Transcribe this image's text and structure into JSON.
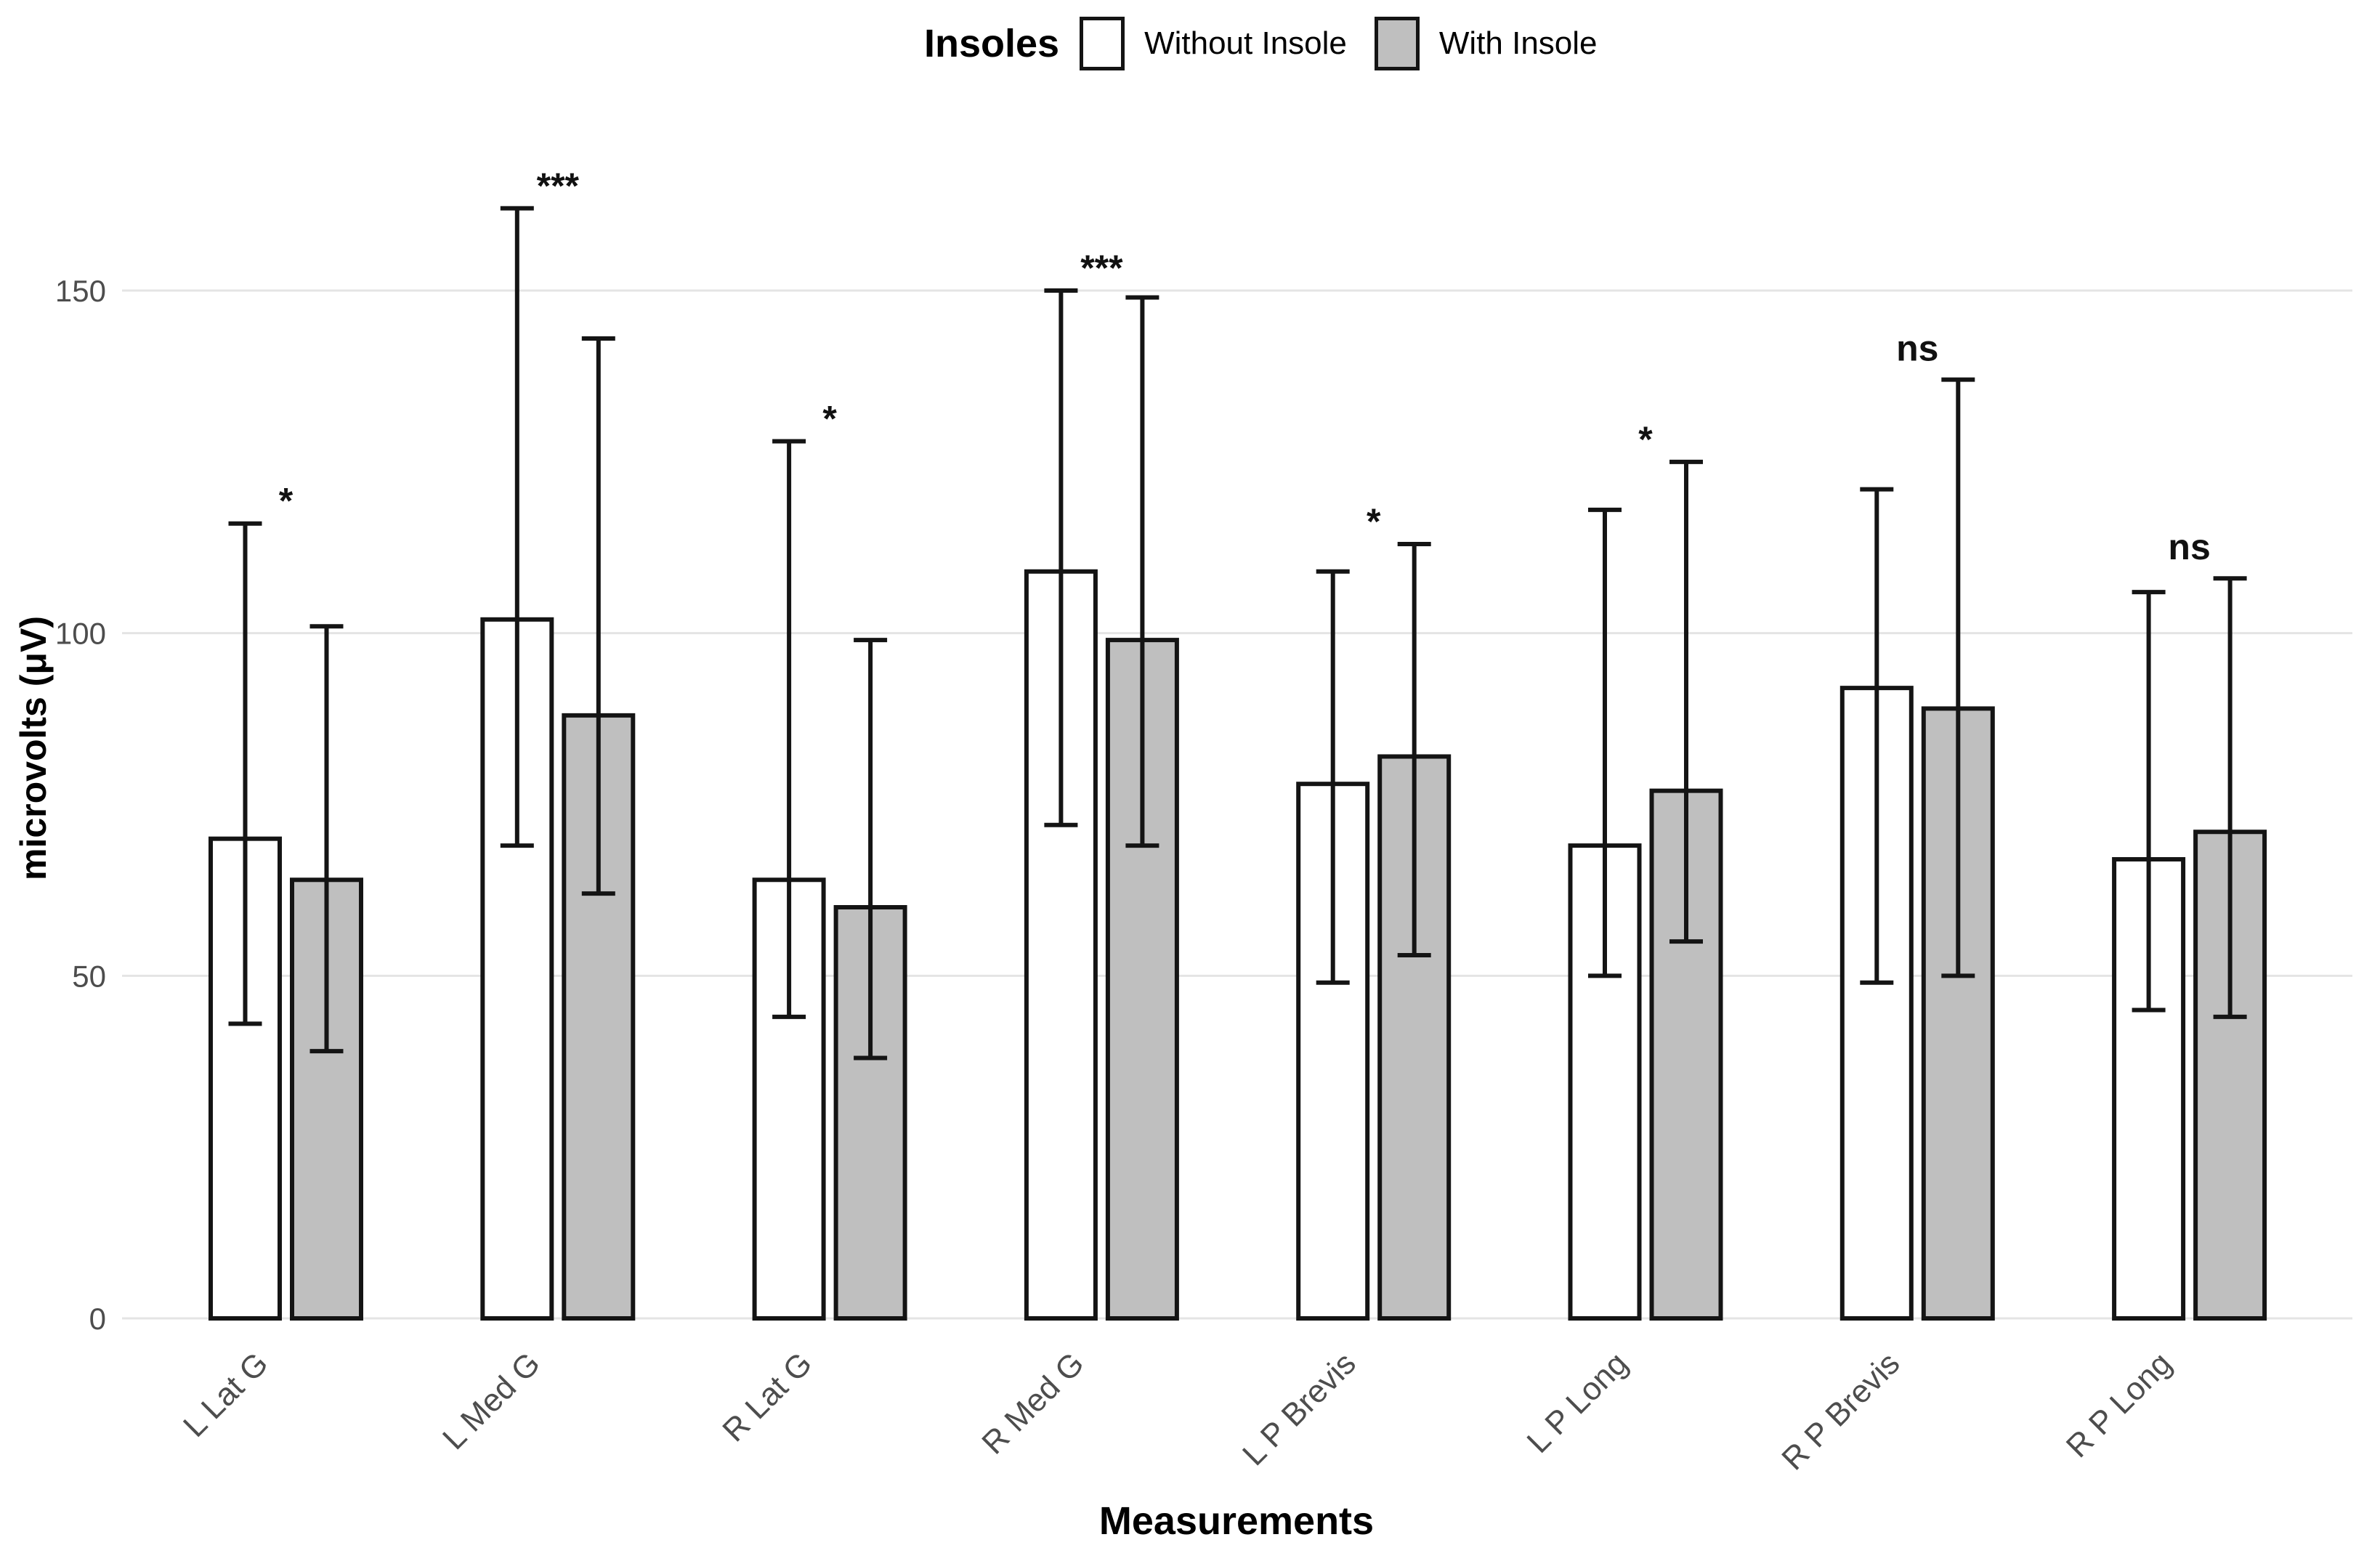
{
  "legend": {
    "title": "Insoles",
    "items": [
      {
        "label": "Without Insole",
        "fill": "#FFFFFF"
      },
      {
        "label": "With Insole",
        "fill": "#BFBFBF"
      }
    ]
  },
  "axes": {
    "y_title": "microvolts (μV)",
    "x_title": "Measurements"
  },
  "chart_data": {
    "type": "bar",
    "title": "Insoles",
    "xlabel": "Measurements",
    "ylabel": "microvolts (μV)",
    "ylim": [
      0,
      168
    ],
    "yticks": [
      0,
      50,
      100,
      150
    ],
    "grid": true,
    "legend_position": "top-center",
    "categories": [
      "L Lat G",
      "L Med G",
      "R Lat G",
      "R Med G",
      "L P Brevis",
      "L P Long",
      "R P Brevis",
      "R P Long"
    ],
    "series": [
      {
        "name": "Without Insole",
        "fill": "#FFFFFF",
        "values": [
          70,
          102,
          64,
          109,
          78,
          69,
          92,
          67
        ],
        "error_low": [
          43,
          69,
          44,
          72,
          49,
          50,
          49,
          45
        ],
        "error_high": [
          116,
          162,
          128,
          150,
          109,
          118,
          121,
          106
        ]
      },
      {
        "name": "With Insole",
        "fill": "#BFBFBF",
        "values": [
          64,
          88,
          60,
          99,
          82,
          77,
          89,
          71
        ],
        "error_low": [
          39,
          62,
          38,
          69,
          53,
          55,
          50,
          44
        ],
        "error_high": [
          101,
          143,
          99,
          149,
          113,
          125,
          137,
          108
        ]
      }
    ],
    "significance": [
      "*",
      "***",
      "*",
      "***",
      "*",
      "*",
      "ns",
      "ns"
    ]
  },
  "colors": {
    "grid": "#E4E4E4",
    "tick_label": "#4D4D4D",
    "category_label": "#4D4D4D",
    "bar_outline": "#141414",
    "error_bar": "#141414",
    "significance": "#111111",
    "background": "#FFFFFF"
  }
}
